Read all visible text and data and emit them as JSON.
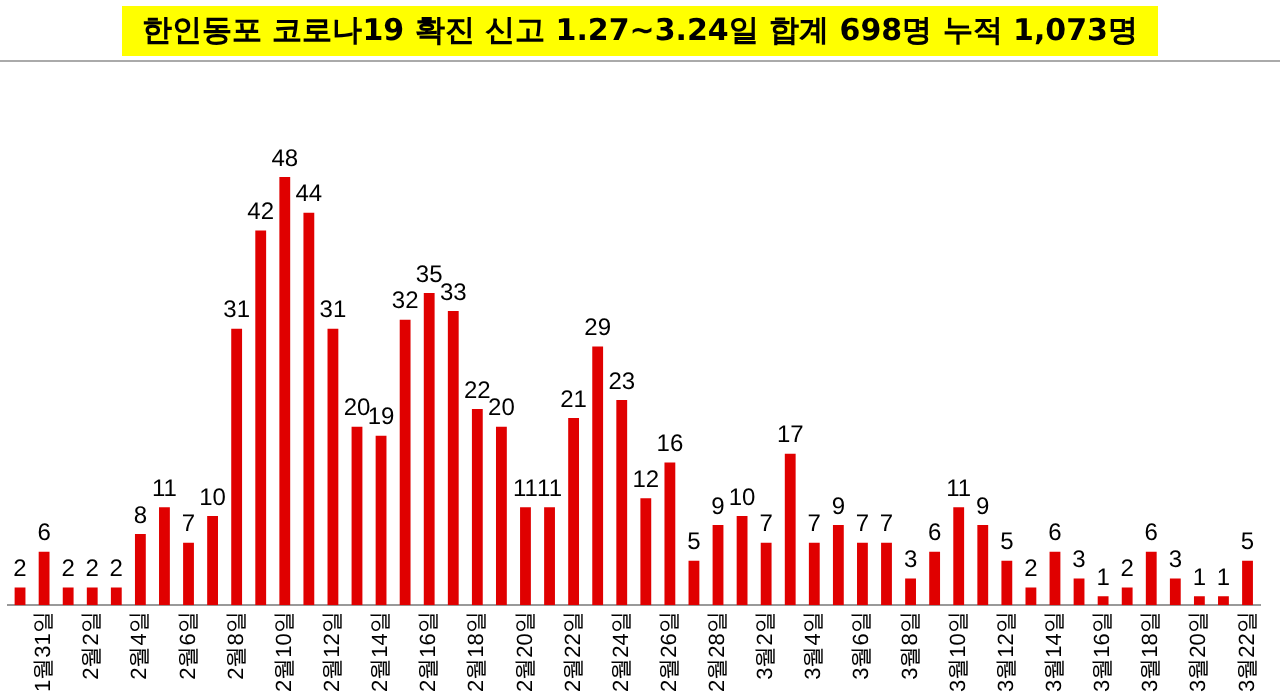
{
  "chart_data": {
    "type": "bar",
    "title": "한인동포 코로나19 확진 신고 1.27~3.24일 합계 698명 누적 1,073명",
    "categories": [
      null,
      "1월31일",
      null,
      "2월2일",
      null,
      "2월4일",
      null,
      "2월6일",
      null,
      "2월8일",
      null,
      "2월10일",
      null,
      "2월12일",
      null,
      "2월14일",
      null,
      "2월16일",
      null,
      "2월18일",
      null,
      "2월20일",
      null,
      "2월22일",
      null,
      "2월24일",
      null,
      "2월26일",
      null,
      "2월28일",
      null,
      "3월2일",
      null,
      "3월4일",
      null,
      "3월6일",
      null,
      "3월8일",
      null,
      "3월10일",
      null,
      "3월12일",
      null,
      "3월14일",
      null,
      "3월16일",
      null,
      "3월18일",
      null,
      "3월20일",
      null,
      "3월22일"
    ],
    "values": [
      2,
      6,
      2,
      2,
      2,
      8,
      11,
      7,
      10,
      31,
      42,
      48,
      44,
      31,
      20,
      19,
      32,
      35,
      33,
      22,
      20,
      11,
      11,
      21,
      29,
      23,
      12,
      16,
      5,
      9,
      10,
      7,
      17,
      7,
      9,
      7,
      7,
      3,
      6,
      11,
      9,
      5,
      2,
      6,
      3,
      1,
      2,
      6,
      3,
      1,
      1,
      5
    ],
    "color": "#e00000",
    "data_labels": true,
    "grid": false,
    "legend": false
  }
}
